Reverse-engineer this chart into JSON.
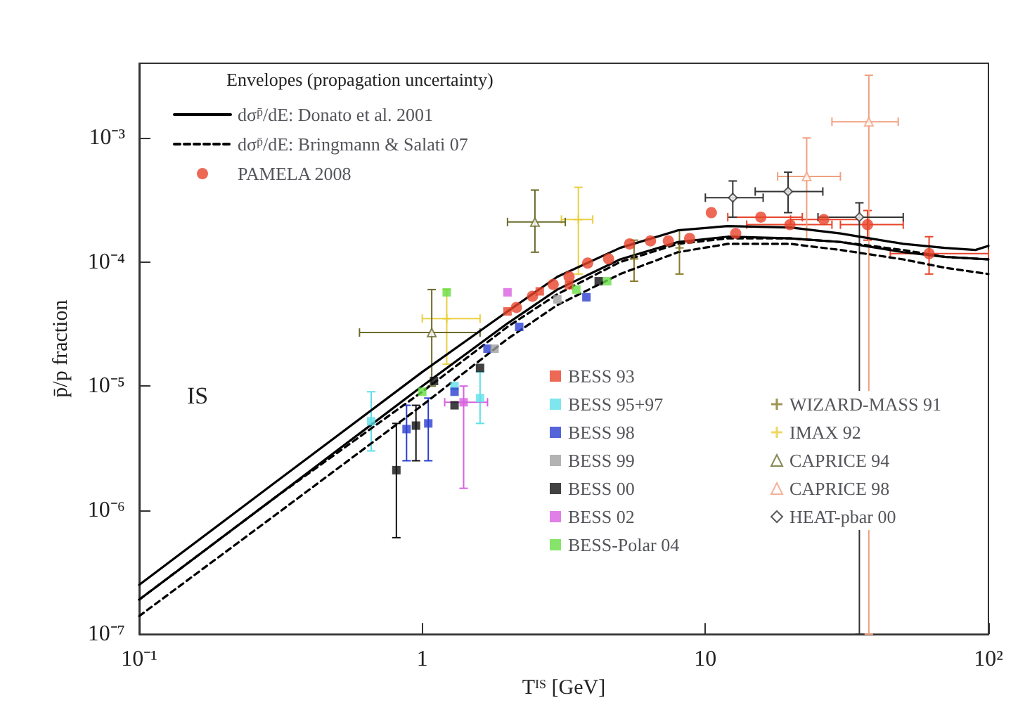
{
  "chart_data": {
    "type": "scatter",
    "xlabel": "T$^{IS}$ [GeV]",
    "ylabel": "p̄/p fraction",
    "legend_title": "Envelopes (propagation uncertainty)",
    "annotations": [
      "IS"
    ],
    "log": "xy",
    "grid": false,
    "legend": "top left",
    "xlim": [
      0.1,
      100
    ],
    "xticks": [
      {
        "value": 0.1,
        "label": "10⁻¹"
      },
      1,
      10,
      {
        "value": 100,
        "label": "10²"
      }
    ],
    "ylim": [
      1e-07,
      0.004
    ],
    "yticks": [
      {
        "value": 1e-07,
        "label": "10⁻⁷"
      },
      {
        "value": 1e-06,
        "label": "10⁻⁶"
      },
      {
        "value": 1e-05,
        "label": "10⁻⁵"
      },
      {
        "value": 0.0001,
        "label": "10⁻⁴"
      },
      {
        "value": 0.001,
        "label": "10⁻³"
      }
    ],
    "series": [
      {
        "type": "line",
        "name": "dσ$^{p̄}$/dE: Donato et al. 2001",
        "color": "#000000",
        "line_style": "solid",
        "marker": "none",
        "x": [
          0.1,
          0.3,
          1,
          2,
          3,
          5,
          8,
          12,
          20,
          30,
          50,
          70,
          90,
          100
        ],
        "values": [
          2.5e-07,
          1.65e-06,
          1.3e-05,
          4e-05,
          7.6e-05,
          0.00013,
          0.00018,
          0.000195,
          0.00019,
          0.00017,
          0.00014,
          0.00013,
          0.000125,
          0.000135
        ]
      },
      {
        "type": "line",
        "color": "#000000",
        "line_style": "solid",
        "marker": "none",
        "x": [
          0.1,
          0.3,
          1,
          2,
          3,
          5,
          8,
          12,
          20,
          30,
          50,
          70,
          100
        ],
        "values": [
          1.9e-07,
          1.25e-06,
          1e-05,
          3.2e-05,
          6e-05,
          0.000105,
          0.000145,
          0.00016,
          0.000155,
          0.000145,
          0.00012,
          0.00011,
          0.000105
        ]
      },
      {
        "type": "line",
        "name": "dσ$^{p̄}$/dE: Bringmann & Salati 07",
        "color": "#000000",
        "line_style": "dashed",
        "marker": "none",
        "x": [
          0.1,
          0.3,
          1,
          2,
          3,
          5,
          8,
          12,
          20,
          30,
          50,
          70,
          100
        ],
        "values": [
          1.9e-07,
          1.25e-06,
          9e-06,
          3e-05,
          5.5e-05,
          0.0001,
          0.00014,
          0.000155,
          0.000155,
          0.000145,
          0.000125,
          0.00011,
          0.000105
        ]
      },
      {
        "type": "line",
        "color": "#000000",
        "line_style": "dashed",
        "marker": "none",
        "x": [
          0.1,
          0.3,
          1,
          2,
          3,
          5,
          8,
          12,
          20,
          30,
          50,
          70,
          100
        ],
        "values": [
          1.4e-07,
          9e-07,
          7e-06,
          2.4e-05,
          4.5e-05,
          8e-05,
          0.00012,
          0.00014,
          0.00014,
          0.000125,
          0.000105,
          9e-05,
          8e-05
        ]
      },
      {
        "name": "PAMELA 2008",
        "color": "#e8442a",
        "marker": "circle",
        "x": [
          2.15,
          2.45,
          2.9,
          3.3,
          3.84,
          4.55,
          5.4,
          6.4,
          7.4,
          8.8,
          10.5,
          12.8,
          15.7,
          19.9,
          26.2,
          37.4,
          61.7
        ],
        "values": [
          4.3e-05,
          5.3e-05,
          6.6e-05,
          7.6e-05,
          9.8e-05,
          0.000106,
          0.00014,
          0.000148,
          0.000148,
          0.000155,
          0.00025,
          0.00017,
          0.00023,
          0.0002,
          0.00022,
          0.0002,
          0.000117
        ],
        "errors": [
          null,
          null,
          null,
          null,
          null,
          null,
          null,
          null,
          null,
          null,
          null,
          null,
          null,
          null,
          null,
          [
            0.00015,
            0.00026
          ],
          [
            8e-05,
            0.00016
          ]
        ],
        "xerrors": [
          null,
          null,
          null,
          null,
          null,
          null,
          null,
          null,
          null,
          null,
          null,
          null,
          [
            12,
            22
          ],
          [
            14,
            28
          ],
          [
            20,
            35
          ],
          [
            30,
            50
          ],
          [
            45,
            100
          ]
        ]
      },
      {
        "name": "BESS 93",
        "color": "#e8442a",
        "marker": "square",
        "x": [
          2.0,
          2.6,
          3.3
        ],
        "values": [
          4e-05,
          5.8e-05,
          6.5e-05
        ]
      },
      {
        "name": "BESS 95+97",
        "color": "#5fe0e8",
        "marker": "square",
        "x": [
          0.66,
          1.3,
          1.6
        ],
        "values": [
          5.2e-06,
          1e-05,
          8e-06
        ],
        "errors": [
          [
            3e-06,
            9e-06
          ],
          null,
          [
            5e-06,
            1.3e-05
          ]
        ]
      },
      {
        "name": "BESS 98",
        "color": "#2a3fd0",
        "marker": "square",
        "x": [
          0.88,
          1.05,
          1.3,
          1.7,
          2.2,
          3.8
        ],
        "values": [
          4.5e-06,
          5e-06,
          9e-06,
          2e-05,
          3e-05,
          5.2e-05
        ],
        "errors": [
          [
            2.5e-06,
            7e-06
          ],
          [
            2.5e-06,
            8e-06
          ],
          null,
          null,
          null,
          null
        ]
      },
      {
        "name": "BESS 99",
        "color": "#a0a0a0",
        "marker": "square",
        "x": [
          1.8,
          3.0
        ],
        "values": [
          2e-05,
          5e-05
        ]
      },
      {
        "name": "BESS 00",
        "color": "#111111",
        "marker": "square",
        "x": [
          0.81,
          0.95,
          1.1,
          1.3,
          1.6,
          4.2
        ],
        "values": [
          2.1e-06,
          4.8e-06,
          1.1e-05,
          7e-06,
          1.4e-05,
          7e-05
        ],
        "errors": [
          [
            6e-07,
            5e-06
          ],
          [
            2.5e-06,
            7e-06
          ],
          null,
          null,
          null,
          null
        ]
      },
      {
        "name": "BESS 02",
        "color": "#d860e0",
        "marker": "square",
        "x": [
          1.4,
          2.0
        ],
        "values": [
          7.4e-06,
          5.7e-05
        ],
        "errors": [
          [
            1.5e-06,
            1e-05
          ],
          null
        ],
        "xerrors": [
          [
            1.2,
            1.7
          ],
          null
        ]
      },
      {
        "name": "BESS-Polar 04",
        "color": "#66dd44",
        "marker": "square",
        "x": [
          1.0,
          1.22,
          3.5,
          4.5
        ],
        "values": [
          9e-06,
          5.7e-05,
          6e-05,
          7e-05
        ]
      },
      {
        "name": "WIZARD-MASS 91",
        "color": "#8a7a2a",
        "marker": "cross",
        "x": [
          5.6,
          8.1
        ],
        "values": [
          0.000106,
          0.00013
        ],
        "errors": [
          [
            7e-05,
            0.00015
          ],
          [
            8e-05,
            0.00018
          ]
        ]
      },
      {
        "name": "IMAX 92",
        "color": "#e8d040",
        "marker": "cross",
        "x": [
          1.22,
          3.56
        ],
        "values": [
          3.5e-05,
          0.00022
        ],
        "errors": [
          [
            1.5e-05,
            6e-05
          ],
          [
            8e-05,
            0.0004
          ]
        ],
        "xerrors": [
          [
            1.0,
            1.6
          ],
          [
            3.1,
            4.0
          ]
        ]
      },
      {
        "name": "CAPRICE 94",
        "color": "#6b6b2a",
        "marker": "triangle",
        "x": [
          1.08,
          2.5
        ],
        "values": [
          2.7e-05,
          0.00021
        ],
        "errors": [
          [
            1e-05,
            6e-05
          ],
          [
            0.00012,
            0.00038
          ]
        ],
        "xerrors": [
          [
            0.6,
            1.6
          ],
          [
            2.0,
            3.2
          ]
        ]
      },
      {
        "name": "CAPRICE 98",
        "color": "#f0a080",
        "marker": "triangle",
        "x": [
          22.8,
          37.8
        ],
        "values": [
          0.00049,
          0.00135
        ],
        "errors": [
          [
            0.00015,
            0.001
          ],
          [
            1e-07,
            0.0032
          ]
        ],
        "xerrors": [
          [
            18,
            30
          ],
          [
            28,
            48
          ]
        ]
      },
      {
        "name": "HEAT-pbar 00",
        "color": "#333333",
        "marker": "diamond",
        "x": [
          12.5,
          19.6,
          35
        ],
        "values": [
          0.00033,
          0.00037,
          0.00023
        ],
        "errors": [
          [
            0.00023,
            0.00045
          ],
          [
            0.00025,
            0.00053
          ],
          [
            1e-07,
            0.0003
          ]
        ],
        "xerrors": [
          [
            10,
            16
          ],
          [
            15,
            26
          ],
          [
            25,
            50
          ]
        ]
      }
    ]
  }
}
